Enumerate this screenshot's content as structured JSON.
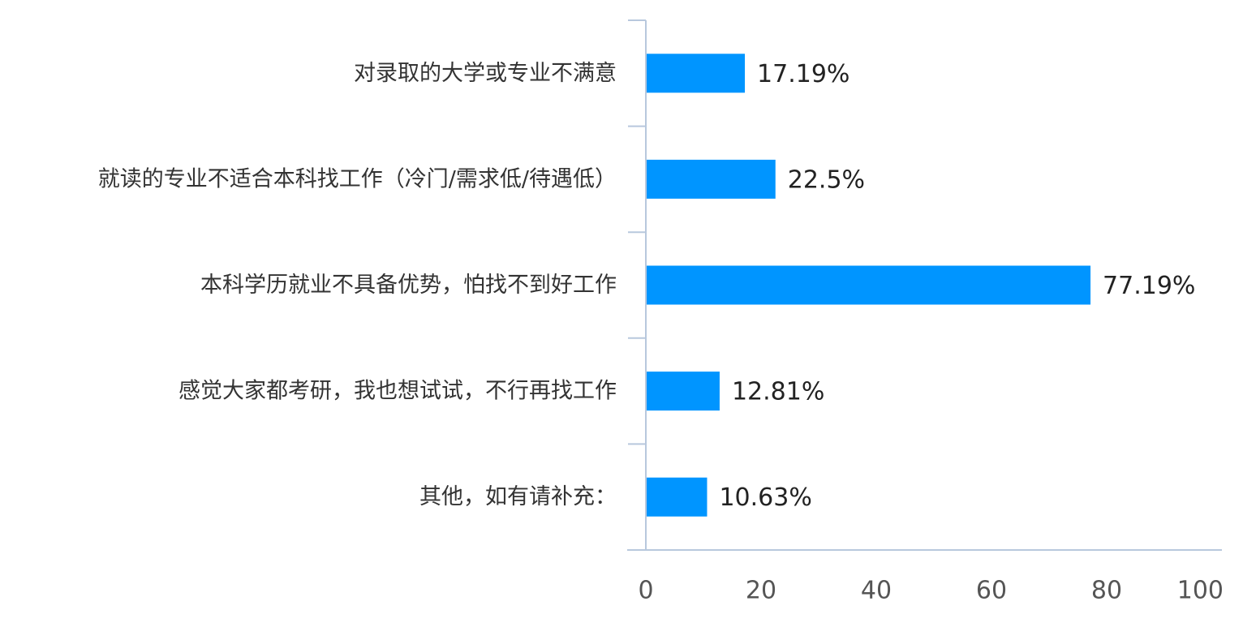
{
  "chart_data": {
    "type": "bar",
    "orientation": "horizontal",
    "categories": [
      "对录取的大学或专业不满意",
      "就读的专业不适合本科找工作（冷门/需求低/待遇低）",
      "本科学历就业不具备优势，怕找不到好工作",
      "感觉大家都考研，我也想试试，不行再找工作",
      "其他，如有请补充："
    ],
    "values": [
      17.19,
      22.5,
      77.19,
      12.81,
      10.63
    ],
    "value_labels": [
      "17.19%",
      "22.5%",
      "77.19%",
      "12.81%",
      "10.63%"
    ],
    "xlim": [
      0,
      100
    ],
    "x_ticks": [
      0,
      20,
      40,
      60,
      80,
      100
    ],
    "x_tick_labels": [
      "0",
      "20",
      "40",
      "60",
      "80",
      "100"
    ],
    "title": "",
    "xlabel": "",
    "ylabel": "",
    "grid": false,
    "legend": "none",
    "colors": {
      "bar": "#0095ff",
      "axis": "#b8c8dd"
    }
  }
}
